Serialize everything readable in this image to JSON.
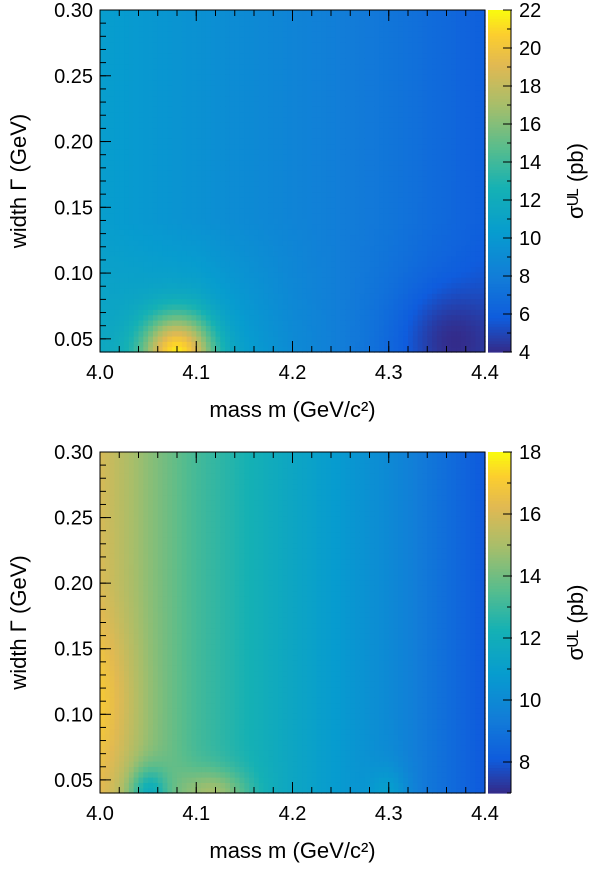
{
  "chart_data": [
    {
      "type": "heatmap",
      "xlabel": "mass m (GeV/c²)",
      "ylabel": "width Γ (GeV)",
      "colorbar_label": "σᵁᴸ (pb)",
      "xlim": [
        4.0,
        4.4
      ],
      "ylim": [
        0.04,
        0.3
      ],
      "x_ticks": [
        "4.0",
        "4.1",
        "4.2",
        "4.3",
        "4.4"
      ],
      "y_ticks": [
        "0.05",
        "0.10",
        "0.15",
        "0.20",
        "0.25",
        "0.30"
      ],
      "colorbar_range": [
        4,
        22
      ],
      "colorbar_ticks": [
        "4",
        "6",
        "8",
        "10",
        "12",
        "14",
        "16",
        "18",
        "20",
        "22"
      ],
      "colormap": "parula",
      "base_values": {
        "mass": [
          4.0,
          4.1,
          4.2,
          4.3,
          4.4
        ],
        "sigma_at_low_width": [
          11.5,
          12.0,
          9.0,
          7.0,
          5.5
        ],
        "sigma_at_high_width": [
          10.5,
          9.5,
          8.5,
          7.5,
          6.0
        ]
      },
      "features": [
        {
          "mass": 4.08,
          "width": 0.04,
          "sigma_ul": 21.5
        },
        {
          "mass": 4.36,
          "width": 0.05,
          "sigma_ul": 4.5
        }
      ]
    },
    {
      "type": "heatmap",
      "xlabel": "mass m (GeV/c²)",
      "ylabel": "width Γ (GeV)",
      "colorbar_label": "σᵁᴸ (pb)",
      "xlim": [
        4.0,
        4.4
      ],
      "ylim": [
        0.04,
        0.3
      ],
      "x_ticks": [
        "4.0",
        "4.1",
        "4.2",
        "4.3",
        "4.4"
      ],
      "y_ticks": [
        "0.05",
        "0.10",
        "0.15",
        "0.20",
        "0.25",
        "0.30"
      ],
      "colorbar_range": [
        7,
        18
      ],
      "colorbar_ticks": [
        "8",
        "10",
        "12",
        "14",
        "16",
        "18"
      ],
      "colormap": "parula",
      "base_values": {
        "mass": [
          4.0,
          4.05,
          4.1,
          4.2,
          4.3,
          4.4
        ],
        "sigma": [
          16.0,
          14.5,
          13.2,
          11.5,
          10.0,
          8.0
        ]
      },
      "features": [
        {
          "mass": 4.12,
          "width": 0.04,
          "sigma_ul": 15.0
        },
        {
          "mass": 4.3,
          "width": 0.04,
          "sigma_ul": 11.0
        },
        {
          "mass": 4.05,
          "width": 0.04,
          "sigma_ul": 11.8
        }
      ]
    }
  ]
}
